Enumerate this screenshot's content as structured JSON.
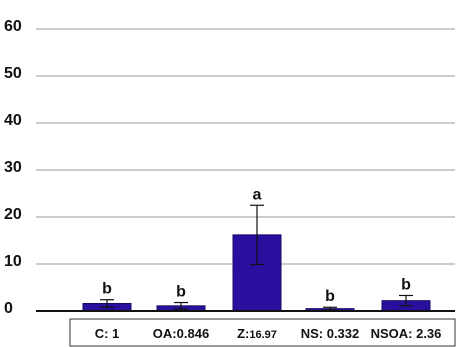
{
  "chart_data": {
    "type": "bar",
    "categories": [
      "C",
      "OA",
      "Z",
      "NS",
      "NSOA"
    ],
    "values": [
      1.6,
      1.1,
      16.2,
      0.5,
      2.2
    ],
    "errors": [
      0.8,
      0.7,
      6.3,
      0.3,
      1.1
    ],
    "significance_letters": [
      "b",
      "b",
      "a",
      "b",
      "b"
    ],
    "category_labels": [
      {
        "prefix": "C: ",
        "value": "1"
      },
      {
        "prefix": "OA:",
        "value": "0.846"
      },
      {
        "prefix": "Z:",
        "value": "16.97"
      },
      {
        "prefix": "NS: ",
        "value": "0.332"
      },
      {
        "prefix": "NSOA: ",
        "value": "2.36"
      }
    ],
    "y_ticks": [
      "0",
      "10",
      "20",
      "30",
      "40",
      "50",
      "60"
    ],
    "ylim": [
      0,
      60
    ],
    "grid": true,
    "bar_color": "#2a0f9e",
    "gridline_color": "#9a9a9a",
    "title": "",
    "xlabel": "",
    "ylabel": ""
  }
}
